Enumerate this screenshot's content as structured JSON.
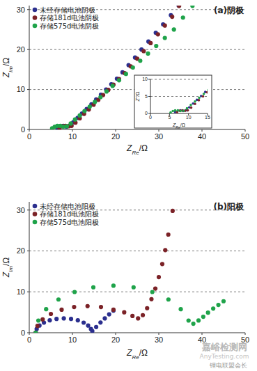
{
  "chart_data": [
    {
      "type": "scatter",
      "title": "(a)阴极",
      "xlabel": {
        "main": "Z",
        "sub": "Re",
        "suffix": "/Ω"
      },
      "ylabel": {
        "main": "Z",
        "sub": "Im",
        "suffix": "/Ω"
      },
      "xlim": [
        0,
        50
      ],
      "ylim": [
        0,
        31
      ],
      "xticks": [
        0,
        10,
        20,
        30,
        40,
        50
      ],
      "yticks": [
        0,
        10,
        20,
        30
      ],
      "grid": true,
      "legend": "upper-left",
      "marker": "circle",
      "series": [
        {
          "name": "未经存储电池阴极",
          "color": "#2b2f8e",
          "x": [
            6.5,
            7.2,
            7.9,
            8.6,
            9.3,
            10.2,
            11.2,
            12.2,
            13.3,
            14.4,
            15.5,
            16.6,
            17.8,
            19.0,
            20.3,
            21.6,
            23.0,
            24.5,
            26.0,
            27.6,
            29.3,
            31.0,
            32.8,
            34.6
          ],
          "values": [
            0.4,
            0.8,
            0.9,
            0.7,
            0.9,
            1.8,
            2.9,
            4.0,
            5.1,
            6.3,
            7.5,
            8.7,
            10.0,
            11.3,
            12.7,
            14.3,
            16.1,
            18.0,
            20.0,
            22.0,
            24.2,
            26.3,
            28.6,
            31.0
          ]
        },
        {
          "name": "存储181d电池阴极",
          "color": "#7b2227",
          "x": [
            7.0,
            7.7,
            8.4,
            9.1,
            9.8,
            10.7,
            11.7,
            12.7,
            13.8,
            14.9,
            16.0,
            17.1,
            18.3,
            19.5,
            20.8,
            22.1,
            23.5,
            25.0,
            26.5,
            28.1,
            29.8,
            31.4,
            33.1,
            34.7
          ],
          "values": [
            0.4,
            0.8,
            0.9,
            0.8,
            0.9,
            1.7,
            2.8,
            3.9,
            5.0,
            6.2,
            7.4,
            8.6,
            9.9,
            11.2,
            12.6,
            14.1,
            15.8,
            17.7,
            19.6,
            21.6,
            23.8,
            26.0,
            28.2,
            30.9
          ]
        },
        {
          "name": "存储575d电池阴极",
          "color": "#1fa34a",
          "x": [
            5.3,
            5.9,
            6.5,
            7.2,
            7.9,
            8.7,
            9.6,
            10.6,
            11.7,
            12.8,
            14.0,
            15.2,
            16.5,
            17.9,
            19.3,
            20.8,
            22.4,
            24.0,
            25.7,
            27.5,
            29.4,
            31.4,
            33.5,
            35.6,
            37.8
          ],
          "values": [
            0.3,
            0.7,
            0.9,
            0.9,
            0.7,
            0.8,
            1.5,
            2.5,
            3.5,
            4.6,
            5.7,
            6.9,
            8.1,
            9.5,
            10.9,
            12.3,
            13.9,
            15.5,
            17.2,
            19.0,
            20.9,
            22.9,
            25.0,
            28.0,
            30.9
          ]
        }
      ],
      "inset": {
        "xlabel": {
          "main": "Z",
          "sub": "Re",
          "suffix": "/Ω"
        },
        "ylabel": {
          "main": "Z''",
          "suffix": "/Ω"
        },
        "xlim": [
          0,
          15
        ],
        "ylim": [
          0,
          10
        ],
        "xticks": [
          0,
          5,
          10,
          15
        ],
        "yticks": [
          0,
          5,
          10
        ],
        "grid": true
      }
    },
    {
      "type": "scatter",
      "title": "(b)阳极",
      "xlabel": {
        "main": "Z",
        "sub": "Re",
        "suffix": "/Ω"
      },
      "ylabel": {
        "main": "Z",
        "sub": "Im",
        "suffix": "/Ω"
      },
      "xlim": [
        0,
        50
      ],
      "ylim": [
        0,
        32
      ],
      "xticks": [
        0,
        10,
        20,
        30,
        40,
        50
      ],
      "yticks": [
        0,
        10,
        20,
        30
      ],
      "grid": true,
      "legend": "upper-left",
      "marker": "circle",
      "series": [
        {
          "name": "未经存储电池阳极",
          "color": "#2b2f8e",
          "x": [
            1.5,
            1.72,
            2.37,
            3.4,
            4.75,
            6.32,
            8.0,
            9.68,
            11.25,
            12.6,
            13.63,
            14.28,
            14.6,
            15.5,
            16.5,
            17.5,
            18.5,
            19.5
          ],
          "values": [
            0,
            0.91,
            1.75,
            2.47,
            3.03,
            3.38,
            3.5,
            3.38,
            3.03,
            2.47,
            1.75,
            0.91,
            0.4,
            1.4,
            2.5,
            3.5,
            4.5,
            5.4
          ]
        },
        {
          "name": "存储181d电池阳极",
          "color": "#7b2227",
          "x": [
            1.5,
            1.91,
            3.11,
            5.01,
            7.5,
            10.39,
            13.5,
            16.61,
            19.5,
            21.99,
            23.9,
            25.2,
            26.3,
            27.3,
            28.3,
            29.2,
            30.0,
            30.8,
            31.5,
            32.2,
            33.2
          ],
          "values": [
            0,
            1.68,
            3.25,
            4.6,
            5.63,
            6.28,
            6.5,
            6.28,
            5.63,
            5.0,
            4.1,
            3.5,
            4.3,
            6.0,
            8.2,
            10.8,
            13.6,
            16.8,
            20.2,
            24.0,
            29.8
          ]
        },
        {
          "name": "存储575d电池阳极",
          "color": "#1fa34a",
          "x": [
            1.5,
            2.11,
            3.91,
            6.77,
            10.5,
            14.84,
            19.5,
            24.16,
            28.5,
            32.23,
            35.09,
            36.89,
            38.0,
            39.2,
            40.3,
            41.4,
            42.6,
            43.8,
            45.0
          ],
          "values": [
            0,
            2.98,
            5.75,
            8.13,
            9.96,
            11.11,
            11.5,
            11.11,
            9.96,
            8.13,
            5.75,
            2.98,
            2.2,
            3.0,
            3.9,
            4.9,
            5.9,
            6.8,
            7.7
          ]
        }
      ]
    }
  ],
  "watermarks": [
    "嘉峪检测网",
    "AnyTesting.com",
    "锂电联盟会长"
  ]
}
